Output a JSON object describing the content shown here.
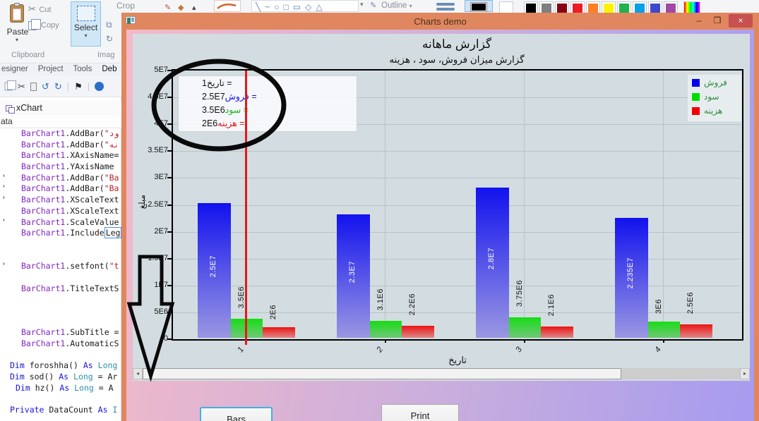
{
  "paint": {
    "paste_label": "Paste",
    "cut_label": "Cut",
    "copy_label": "Copy",
    "clipboard_group": "Clipboard",
    "select_label": "Select",
    "crop_label": "Crop",
    "image_group": "Imag",
    "outline_label": "Outline",
    "shape_glyphs": [
      "╲",
      "~",
      "○",
      "□",
      "▭",
      "◇",
      "△"
    ],
    "palette_colors": [
      "#000000",
      "#7f7f7f",
      "#880015",
      "#ed1c24",
      "#ff7f27",
      "#fff200",
      "#22b14c",
      "#00a2e8",
      "#3f48cc",
      "#a349a4"
    ],
    "color1_value": "#000000",
    "color2_value": "#ffffff"
  },
  "ide": {
    "menu_items": [
      "esigner",
      "Project",
      "Tools",
      "Deb"
    ],
    "object_dropdown": "xChart",
    "member_dropdown": "ata",
    "toolbar_glyphs": [
      "✂",
      "↺",
      "↻",
      "⚑"
    ],
    "code_lines": [
      {
        "ind": 30,
        "tokens": [
          [
            "BarChart1",
            "obj"
          ],
          [
            ".AddBar(",
            "pl"
          ],
          [
            "\"ود",
            "str"
          ]
        ]
      },
      {
        "ind": 30,
        "tokens": [
          [
            "BarChart1",
            "obj"
          ],
          [
            ".AddBar(",
            "pl"
          ],
          [
            "\"نه",
            "str"
          ]
        ]
      },
      {
        "ind": 30,
        "tokens": [
          [
            "BarChart1",
            "obj"
          ],
          [
            ".XAxisName=",
            "pl"
          ]
        ]
      },
      {
        "ind": 30,
        "tokens": [
          [
            "BarChart1",
            "obj"
          ],
          [
            ".YAxisName",
            "pl"
          ]
        ]
      },
      {
        "g": "'",
        "ind": 30,
        "tokens": [
          [
            "BarChart1",
            "obj"
          ],
          [
            ".AddBar(",
            "pl"
          ],
          [
            "\"Ba",
            "str"
          ]
        ]
      },
      {
        "g": "'",
        "ind": 30,
        "tokens": [
          [
            "BarChart1",
            "obj"
          ],
          [
            ".AddBar(",
            "pl"
          ],
          [
            "\"Ba",
            "str"
          ]
        ]
      },
      {
        "g": "'",
        "ind": 30,
        "tokens": [
          [
            "BarChart1",
            "obj"
          ],
          [
            ".XScaleText",
            "pl"
          ]
        ]
      },
      {
        "ind": 30,
        "tokens": [
          [
            "BarChart1",
            "obj"
          ],
          [
            ".XScaleText",
            "pl"
          ]
        ]
      },
      {
        "g": "'",
        "ind": 30,
        "tokens": [
          [
            "BarChart1",
            "obj"
          ],
          [
            ".ScaleValue",
            "pl"
          ]
        ]
      },
      {
        "ind": 30,
        "tokens": [
          [
            "BarChart1",
            "obj"
          ],
          [
            ".Include",
            "pl"
          ],
          [
            "Leg",
            "box"
          ]
        ]
      },
      {},
      {},
      {
        "g": "'",
        "ind": 30,
        "tokens": [
          [
            "BarChart1",
            "obj"
          ],
          [
            ".setfont(",
            "pl"
          ],
          [
            "\"t",
            "str"
          ]
        ]
      },
      {},
      {
        "ind": 30,
        "tokens": [
          [
            "BarChart1",
            "obj"
          ],
          [
            ".TitleTextS",
            "pl"
          ]
        ]
      },
      {},
      {},
      {},
      {
        "ind": 30,
        "tokens": [
          [
            "BarChart1",
            "obj"
          ],
          [
            ".SubTitle =",
            "pl"
          ]
        ]
      },
      {
        "ind": 30,
        "tokens": [
          [
            "BarChart1",
            "obj"
          ],
          [
            ".AutomaticS",
            "pl"
          ]
        ]
      },
      {},
      {
        "ind": 14,
        "tokens": [
          [
            "Dim ",
            "kw"
          ],
          [
            "foroshha() ",
            "pl"
          ],
          [
            "As ",
            "kw"
          ],
          [
            "Long",
            "typ"
          ]
        ]
      },
      {
        "ind": 14,
        "tokens": [
          [
            "Dim ",
            "kw"
          ],
          [
            "sod() ",
            "pl"
          ],
          [
            "As ",
            "kw"
          ],
          [
            "Long ",
            "typ"
          ],
          [
            "= Ar",
            "pl"
          ]
        ]
      },
      {
        "ind": 22,
        "tokens": [
          [
            "Dim ",
            "kw"
          ],
          [
            "hz() ",
            "pl"
          ],
          [
            "As ",
            "kw"
          ],
          [
            "Long ",
            "typ"
          ],
          [
            "= A",
            "pl"
          ]
        ]
      },
      {},
      {
        "ind": 14,
        "tokens": [
          [
            "Private ",
            "kw"
          ],
          [
            "DataCount ",
            "pl"
          ],
          [
            "As ",
            "kw"
          ],
          [
            "I",
            "typ"
          ]
        ]
      }
    ]
  },
  "window": {
    "title": "Charts demo",
    "minimize_glyph": "–",
    "maximize_glyph": "❒",
    "close_glyph": "×"
  },
  "chart": {
    "title": "گزارش ماهانه",
    "subtitle": "گزارش میزان فروش، سود ، هزینه",
    "ylabel": "مبلغ",
    "xlabel": "تاریخ",
    "y_tick_labels": [
      "5E7",
      "4.5E7",
      "4E7",
      "3.5E7",
      "3E7",
      "2.5E7",
      "2E7",
      "1.5E7",
      "1E7",
      "5E6",
      "0"
    ],
    "legend": [
      {
        "label": "فروش",
        "color": "#0000f0"
      },
      {
        "label": "سود",
        "color": "#00dd00"
      },
      {
        "label": "هزینه",
        "color": "#f00000"
      }
    ],
    "tooltip": {
      "eq": " =",
      "rows": [
        {
          "value": "1",
          "label": "تاریخ",
          "color": "#111111"
        },
        {
          "value": "2.5E7",
          "label": "فروش",
          "color": "#1515e6"
        },
        {
          "value": "3.5E6",
          "label": "سود",
          "color": "#18b418"
        },
        {
          "value": "2E6",
          "label": "هزینه",
          "color": "#e01414"
        }
      ]
    }
  },
  "chart_data": {
    "type": "bar",
    "title": "گزارش ماهانه",
    "subtitle": "گزارش میزان فروش، سود ، هزینه",
    "xlabel": "تاریخ",
    "ylabel": "مبلغ",
    "ylim": [
      0,
      50000000
    ],
    "y_tick_step": 5000000,
    "grid": true,
    "legend_position": "top-right",
    "categories": [
      "1",
      "2",
      "3",
      "4"
    ],
    "series": [
      {
        "name": "فروش",
        "color_top": "#1212ee",
        "color_bottom": "#9a97e2",
        "values": [
          25000000,
          23000000,
          28000000,
          22350000
        ],
        "labels": [
          "2.5E7",
          "2.3E7",
          "2.8E7",
          "2.235E7"
        ],
        "label_color": "#ffffff",
        "label_inside": true
      },
      {
        "name": "سود",
        "color_top": "#17dd17",
        "color_bottom": "#70c878",
        "values": [
          3500000,
          3100000,
          3750000,
          3000000
        ],
        "labels": [
          "3.5E6",
          "3.1E6",
          "3.75E6",
          "3E6"
        ],
        "label_color": "#111111",
        "label_inside": false
      },
      {
        "name": "هزینه",
        "color_top": "#ee1212",
        "color_bottom": "#dd8888",
        "values": [
          2000000,
          2200000,
          2100000,
          2500000
        ],
        "labels": [
          "2E6",
          "2.2E6",
          "2.1E6",
          "2.5E6"
        ],
        "label_color": "#111111",
        "label_inside": false
      }
    ]
  },
  "buttons": {
    "bars": "Bars",
    "print": "Print"
  }
}
